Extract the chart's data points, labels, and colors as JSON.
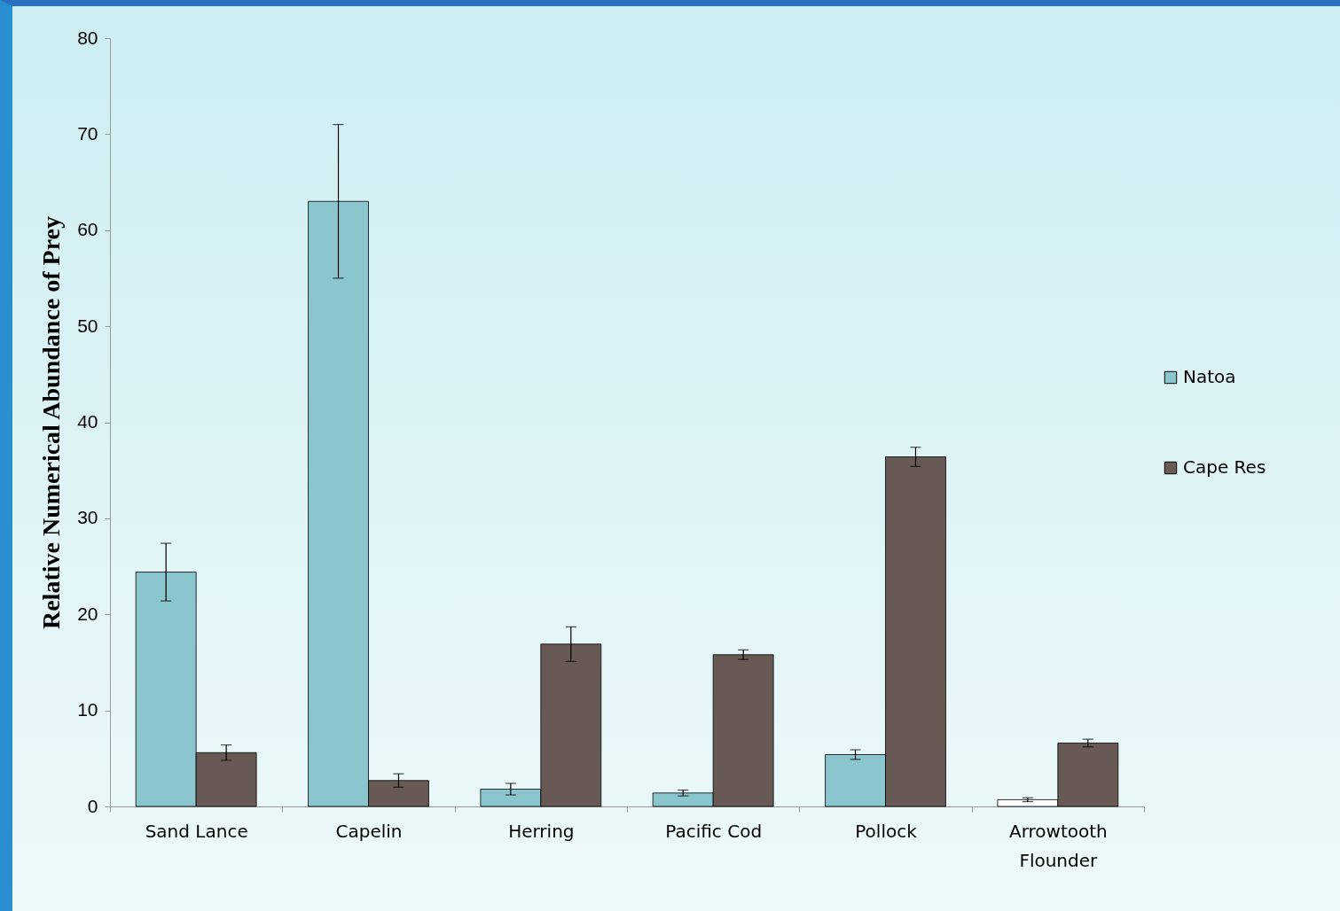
{
  "chart_data": {
    "type": "bar",
    "ylabel": "Relative Numerical Abundance of Prey",
    "categories": [
      "Sand Lance",
      "Capelin",
      "Herring",
      "Pacific Cod",
      "Pollock",
      "Arrowtooth Flounder"
    ],
    "series": [
      {
        "name": "Natoa",
        "color": "#8bc5ce",
        "colors": [
          "#8bc5ce",
          "#8bc5ce",
          "#8bc5ce",
          "#8bc5ce",
          "#8bc5ce",
          "#ffffff"
        ],
        "values": [
          24.4,
          63,
          1.8,
          1.4,
          5.4,
          0.7
        ],
        "errors": [
          3,
          8,
          0.6,
          0.3,
          0.5,
          0.2
        ]
      },
      {
        "name": "Cape Res",
        "color": "#675a54",
        "values": [
          5.6,
          2.7,
          16.9,
          15.8,
          36.4,
          6.6
        ],
        "errors": [
          0.8,
          0.7,
          1.8,
          0.5,
          1,
          0.4
        ]
      }
    ],
    "ylim": [
      0,
      80
    ],
    "yticks": [
      0,
      10,
      20,
      30,
      40,
      50,
      60,
      70,
      80
    ],
    "grid": false,
    "legend": "right"
  }
}
